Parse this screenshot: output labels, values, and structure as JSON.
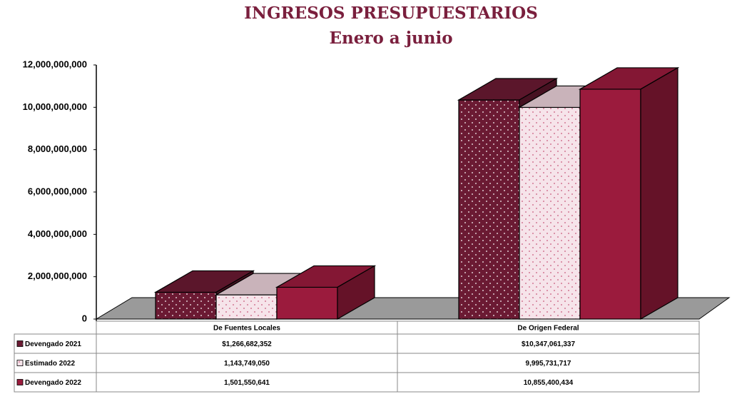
{
  "chart_data": {
    "type": "bar3d",
    "title": "INGRESOS PRESUPUESTARIOS",
    "subtitle": "Enero a junio",
    "categories": [
      "De Fuentes Locales",
      "De Origen Federal"
    ],
    "series": [
      {
        "name": "Devengado 2021",
        "color": "#6b1a33",
        "values": [
          1266682352,
          10347061337
        ],
        "value_labels": [
          "$1,266,682,352",
          "$10,347,061,337"
        ]
      },
      {
        "name": "Estimado 2022",
        "color": "#f6e4ea",
        "values": [
          1143749050,
          9995731717
        ],
        "value_labels": [
          "1,143,749,050",
          "9,995,731,717"
        ]
      },
      {
        "name": "Devengado 2022",
        "color": "#9b1b3d",
        "values": [
          1501550641,
          10855400434
        ],
        "value_labels": [
          "1,501,550,641",
          "10,855,400,434"
        ]
      }
    ],
    "ylim": [
      0,
      12000000000
    ],
    "yticks": [
      0,
      {
        "value": 2000000000,
        "label": "2,000,000,000"
      },
      {
        "value": 4000000000,
        "label": "4,000,000,000"
      },
      {
        "value": 6000000000,
        "label": "6,000,000,000"
      },
      {
        "value": 8000000000,
        "label": "8,000,000,000"
      },
      {
        "value": 10000000000,
        "label": "10,000,000,000"
      },
      {
        "value": 12000000000,
        "label": "12,000,000,000"
      }
    ]
  }
}
